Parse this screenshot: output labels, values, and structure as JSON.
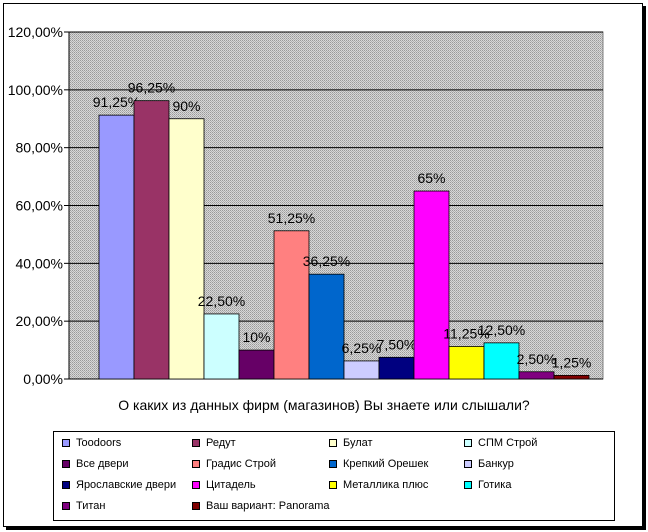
{
  "chart_data": {
    "type": "bar",
    "title": "",
    "xlabel": "О каких из данных фирм (магазинов) Вы знаете или слышали?",
    "ylabel": "",
    "ylim": [
      0,
      120
    ],
    "yticks": [
      "0,00%",
      "20,00%",
      "40,00%",
      "60,00%",
      "80,00%",
      "100,00%",
      "120,00%"
    ],
    "grid": true,
    "legend_position": "bottom",
    "series": [
      {
        "name": "Toodoors",
        "value": 91.25,
        "label": "91,25%",
        "color": "#9999ff"
      },
      {
        "name": "Редут",
        "value": 96.25,
        "label": "96,25%",
        "color": "#993366"
      },
      {
        "name": "Булат",
        "value": 90,
        "label": "90%",
        "color": "#ffffcc"
      },
      {
        "name": "СПМ Строй",
        "value": 22.5,
        "label": "22,50%",
        "color": "#ccffff"
      },
      {
        "name": "Все двери",
        "value": 10,
        "label": "10%",
        "color": "#660066"
      },
      {
        "name": "Градис Строй",
        "value": 51.25,
        "label": "51,25%",
        "color": "#ff8080"
      },
      {
        "name": "Крепкий Орешек",
        "value": 36.25,
        "label": "36,25%",
        "color": "#0066cc"
      },
      {
        "name": "Банкур",
        "value": 6.25,
        "label": "6,25%",
        "color": "#ccccff"
      },
      {
        "name": "Ярославские двери",
        "value": 7.5,
        "label": "7,50%",
        "color": "#000080"
      },
      {
        "name": "Цитадель",
        "value": 65,
        "label": "65%",
        "color": "#ff00ff"
      },
      {
        "name": "Металлика плюс",
        "value": 11.25,
        "label": "11,25%",
        "color": "#ffff00"
      },
      {
        "name": "Готика",
        "value": 12.5,
        "label": "12,50%",
        "color": "#00ffff"
      },
      {
        "name": "Титан",
        "value": 2.5,
        "label": "2,50%",
        "color": "#800080"
      },
      {
        "name": "Ваш вариант: Panorama",
        "value": 1.25,
        "label": "1,25%",
        "color": "#800000"
      }
    ],
    "plot_background": "#c0c0c0"
  }
}
